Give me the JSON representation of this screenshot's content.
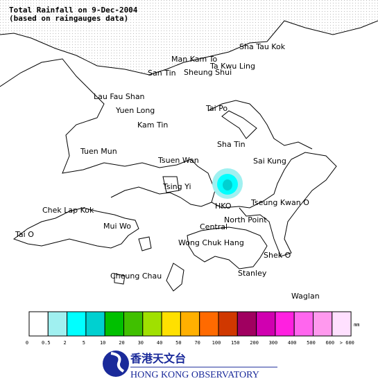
{
  "title_lines": [
    "Total Rainfall on 9-Dec-2004",
    "(based on raingauges data)"
  ],
  "places": [
    "Sha Tau Kok",
    "Man Kam To",
    "Ta Kwu Ling",
    "San Tin",
    "Sheung Shui",
    "Lau Fau Shan",
    "Tai Po",
    "Yuen Long",
    "Kam Tin",
    "Sha Tin",
    "Tuen Mun",
    "Tsuen Wan",
    "Sai Kung",
    "Tsing Yi",
    "HKO",
    "Tseung Kwan O",
    "Chek Lap Kok",
    "North Point",
    "Mui Wo",
    "Central",
    "Tai O",
    "Wong Chuk Hang",
    "Shek O",
    "Stanley",
    "Cheung Chau",
    "Waglan"
  ],
  "legend": {
    "unit": "mm",
    "colors": [
      "#ffffff",
      "#a0f0f0",
      "#00ffff",
      "#00d0d0",
      "#00c000",
      "#40c000",
      "#a0e000",
      "#ffe000",
      "#ffb000",
      "#ff6a00",
      "#d03800",
      "#a00060",
      "#d000b0",
      "#ff20e0",
      "#ff66ee",
      "#ff99ee",
      "#ffe0ff"
    ],
    "labels": [
      "0",
      "0.5",
      "2",
      "5",
      "10",
      "20",
      "30",
      "40",
      "50",
      "70",
      "100",
      "150",
      "200",
      "300",
      "400",
      "500",
      "600",
      "> 600"
    ]
  },
  "logo": {
    "chinese": "香港天文台",
    "english": "HONG KONG OBSERVATORY"
  }
}
